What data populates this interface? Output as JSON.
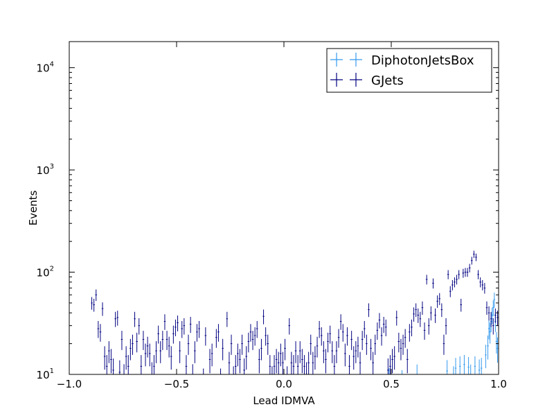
{
  "chart_data": {
    "type": "scatter",
    "title": "",
    "xlabel": "Lead IDMVA",
    "ylabel": "Events",
    "xlim": [
      -1.0,
      1.0
    ],
    "ylim": [
      10,
      18000
    ],
    "yscale": "log",
    "grid": false,
    "legend_position": "top-right",
    "x_ticks": [
      {
        "value": -1.0,
        "label": "−1.0"
      },
      {
        "value": -0.5,
        "label": "−0.5"
      },
      {
        "value": 0.0,
        "label": "0.0"
      },
      {
        "value": 0.5,
        "label": "0.5"
      },
      {
        "value": 1.0,
        "label": "1.0"
      }
    ],
    "y_ticks": [
      {
        "value": 10,
        "base": "10",
        "exp": "1"
      },
      {
        "value": 100,
        "base": "10",
        "exp": "2"
      },
      {
        "value": 1000,
        "base": "10",
        "exp": "3"
      },
      {
        "value": 10000,
        "base": "10",
        "exp": "4"
      }
    ],
    "series": [
      {
        "name": "DiphotonJetsBox",
        "color": "#3399ee",
        "points": [
          [
            0.49,
            8.5
          ],
          [
            0.55,
            8.0
          ],
          [
            0.62,
            9.5
          ],
          [
            0.76,
            10.8
          ],
          [
            0.79,
            9.0
          ],
          [
            0.8,
            11.5
          ],
          [
            0.82,
            12.0
          ],
          [
            0.84,
            12.5
          ],
          [
            0.86,
            11.8
          ],
          [
            0.87,
            9.5
          ],
          [
            0.89,
            12.0
          ],
          [
            0.91,
            11.0
          ],
          [
            0.92,
            11.5
          ],
          [
            0.94,
            15.5
          ],
          [
            0.95,
            19.0
          ],
          [
            0.955,
            28
          ],
          [
            0.96,
            26
          ],
          [
            0.965,
            33
          ],
          [
            0.97,
            38
          ],
          [
            0.975,
            45
          ],
          [
            0.98,
            54
          ],
          [
            0.985,
            33
          ],
          [
            0.99,
            21
          ],
          [
            0.995,
            18
          ]
        ],
        "errors": [
          [
            0.49,
            3
          ],
          [
            0.55,
            3
          ],
          [
            0.62,
            3
          ],
          [
            0.76,
            3
          ],
          [
            0.79,
            3
          ],
          [
            0.8,
            3
          ],
          [
            0.82,
            3
          ],
          [
            0.84,
            3
          ],
          [
            0.86,
            3
          ],
          [
            0.87,
            3
          ],
          [
            0.89,
            3
          ],
          [
            0.91,
            3
          ],
          [
            0.92,
            3
          ],
          [
            0.94,
            4
          ],
          [
            0.95,
            5
          ],
          [
            0.955,
            6
          ],
          [
            0.96,
            6
          ],
          [
            0.965,
            7
          ],
          [
            0.97,
            7
          ],
          [
            0.975,
            8
          ],
          [
            0.98,
            9
          ],
          [
            0.985,
            7
          ],
          [
            0.99,
            5
          ],
          [
            0.995,
            5
          ]
        ]
      },
      {
        "name": "GJets",
        "color": "#000080",
        "points": [
          [
            -0.895,
            50
          ],
          [
            -0.885,
            48
          ],
          [
            -0.875,
            60
          ],
          [
            -0.865,
            28
          ],
          [
            -0.855,
            26
          ],
          [
            -0.845,
            44
          ],
          [
            -0.835,
            15
          ],
          [
            -0.825,
            12
          ],
          [
            -0.815,
            17
          ],
          [
            -0.805,
            14
          ],
          [
            -0.795,
            11
          ],
          [
            -0.785,
            35
          ],
          [
            -0.775,
            36
          ],
          [
            -0.765,
            10.5
          ],
          [
            -0.755,
            22
          ],
          [
            -0.745,
            9.5
          ],
          [
            -0.735,
            15
          ],
          [
            -0.725,
            12
          ],
          [
            -0.715,
            18
          ],
          [
            -0.705,
            20
          ],
          [
            -0.695,
            35
          ],
          [
            -0.685,
            21
          ],
          [
            -0.675,
            30
          ],
          [
            -0.665,
            12
          ],
          [
            -0.655,
            22
          ],
          [
            -0.645,
            16
          ],
          [
            -0.635,
            19
          ],
          [
            -0.625,
            16
          ],
          [
            -0.615,
            10
          ],
          [
            -0.605,
            12
          ],
          [
            -0.595,
            17
          ],
          [
            -0.585,
            25
          ],
          [
            -0.575,
            17
          ],
          [
            -0.565,
            22
          ],
          [
            -0.555,
            33
          ],
          [
            -0.545,
            22
          ],
          [
            -0.535,
            19
          ],
          [
            -0.525,
            15
          ],
          [
            -0.515,
            25
          ],
          [
            -0.505,
            29
          ],
          [
            -0.495,
            32
          ],
          [
            -0.485,
            17
          ],
          [
            -0.475,
            28
          ],
          [
            -0.465,
            30
          ],
          [
            -0.455,
            12
          ],
          [
            -0.445,
            20
          ],
          [
            -0.435,
            31
          ],
          [
            -0.425,
            9.5
          ],
          [
            -0.415,
            17
          ],
          [
            -0.405,
            26
          ],
          [
            -0.395,
            28
          ],
          [
            -0.375,
            8.5
          ],
          [
            -0.365,
            24
          ],
          [
            -0.345,
            14
          ],
          [
            -0.335,
            16
          ],
          [
            -0.315,
            23
          ],
          [
            -0.305,
            26
          ],
          [
            -0.295,
            8.5
          ],
          [
            -0.285,
            18
          ],
          [
            -0.265,
            35
          ],
          [
            -0.255,
            13
          ],
          [
            -0.245,
            20
          ],
          [
            -0.235,
            9
          ],
          [
            -0.225,
            12
          ],
          [
            -0.215,
            16
          ],
          [
            -0.205,
            14
          ],
          [
            -0.195,
            20
          ],
          [
            -0.185,
            11
          ],
          [
            -0.175,
            15
          ],
          [
            -0.165,
            21
          ],
          [
            -0.155,
            26
          ],
          [
            -0.145,
            22
          ],
          [
            -0.135,
            24
          ],
          [
            -0.125,
            28
          ],
          [
            -0.115,
            14
          ],
          [
            -0.105,
            18
          ],
          [
            -0.095,
            37
          ],
          [
            -0.085,
            24
          ],
          [
            -0.075,
            20
          ],
          [
            -0.065,
            12
          ],
          [
            -0.055,
            9
          ],
          [
            -0.045,
            12
          ],
          [
            -0.035,
            14
          ],
          [
            -0.025,
            13
          ],
          [
            -0.015,
            16
          ],
          [
            -0.005,
            13
          ],
          [
            0.005,
            18
          ],
          [
            0.015,
            9
          ],
          [
            0.025,
            30
          ],
          [
            0.035,
            13
          ],
          [
            0.045,
            12
          ],
          [
            0.055,
            17
          ],
          [
            0.065,
            12
          ],
          [
            0.075,
            17
          ],
          [
            0.085,
            14
          ],
          [
            0.095,
            12
          ],
          [
            0.105,
            10
          ],
          [
            0.115,
            13
          ],
          [
            0.125,
            20
          ],
          [
            0.135,
            13
          ],
          [
            0.145,
            15
          ],
          [
            0.155,
            19
          ],
          [
            0.165,
            28
          ],
          [
            0.175,
            24
          ],
          [
            0.185,
            17
          ],
          [
            0.195,
            14
          ],
          [
            0.205,
            21
          ],
          [
            0.215,
            25
          ],
          [
            0.225,
            17
          ],
          [
            0.235,
            12
          ],
          [
            0.245,
            17
          ],
          [
            0.255,
            23
          ],
          [
            0.265,
            33
          ],
          [
            0.275,
            26
          ],
          [
            0.285,
            16
          ],
          [
            0.295,
            24
          ],
          [
            0.305,
            12
          ],
          [
            0.315,
            22
          ],
          [
            0.325,
            15
          ],
          [
            0.335,
            17
          ],
          [
            0.345,
            19
          ],
          [
            0.355,
            13
          ],
          [
            0.365,
            22
          ],
          [
            0.375,
            28
          ],
          [
            0.385,
            20
          ],
          [
            0.395,
            43
          ],
          [
            0.405,
            18
          ],
          [
            0.415,
            13
          ],
          [
            0.425,
            20
          ],
          [
            0.435,
            27
          ],
          [
            0.445,
            34
          ],
          [
            0.455,
            24
          ],
          [
            0.465,
            31
          ],
          [
            0.475,
            29
          ],
          [
            0.485,
            11
          ],
          [
            0.495,
            12
          ],
          [
            0.505,
            14
          ],
          [
            0.515,
            15
          ],
          [
            0.525,
            36
          ],
          [
            0.535,
            21
          ],
          [
            0.545,
            18
          ],
          [
            0.555,
            20
          ],
          [
            0.565,
            23
          ],
          [
            0.575,
            14
          ],
          [
            0.585,
            26
          ],
          [
            0.595,
            29
          ],
          [
            0.605,
            39
          ],
          [
            0.615,
            43
          ],
          [
            0.625,
            38
          ],
          [
            0.635,
            35
          ],
          [
            0.645,
            45
          ],
          [
            0.655,
            27
          ],
          [
            0.665,
            85
          ],
          [
            0.675,
            30
          ],
          [
            0.685,
            40
          ],
          [
            0.695,
            78
          ],
          [
            0.705,
            38
          ],
          [
            0.715,
            52
          ],
          [
            0.725,
            55
          ],
          [
            0.735,
            43
          ],
          [
            0.745,
            20
          ],
          [
            0.755,
            30
          ],
          [
            0.765,
            95
          ],
          [
            0.775,
            65
          ],
          [
            0.785,
            75
          ],
          [
            0.795,
            80
          ],
          [
            0.805,
            85
          ],
          [
            0.815,
            95
          ],
          [
            0.825,
            48
          ],
          [
            0.835,
            98
          ],
          [
            0.845,
            100
          ],
          [
            0.855,
            100
          ],
          [
            0.865,
            110
          ],
          [
            0.875,
            130
          ],
          [
            0.885,
            150
          ],
          [
            0.895,
            140
          ],
          [
            0.905,
            95
          ],
          [
            0.915,
            80
          ],
          [
            0.925,
            75
          ],
          [
            0.935,
            70
          ],
          [
            0.945,
            45
          ],
          [
            0.955,
            40
          ],
          [
            0.965,
            35
          ],
          [
            0.975,
            30
          ],
          [
            0.985,
            38
          ],
          [
            0.995,
            36
          ]
        ]
      }
    ]
  }
}
